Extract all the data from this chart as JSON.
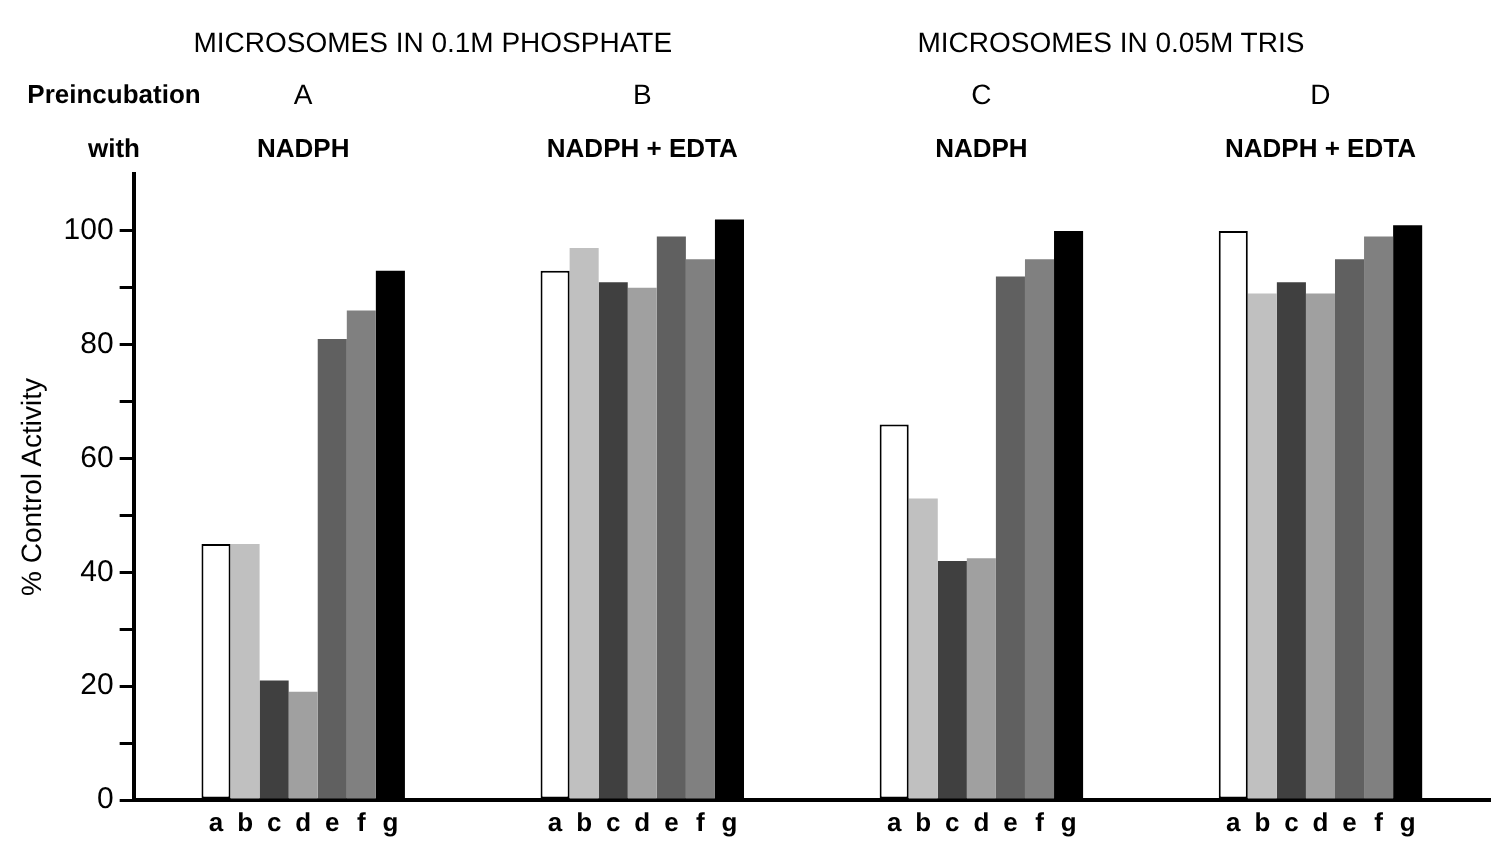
{
  "chart_data": {
    "type": "bar",
    "ylabel": "% Control Activity",
    "categories": [
      "A",
      "B",
      "C",
      "D"
    ],
    "series": [
      {
        "name": "a",
        "color": "#ffffff",
        "values": [
          45,
          93,
          66,
          100
        ]
      },
      {
        "name": "b",
        "color": "#c0c0c0",
        "values": [
          45,
          97,
          53,
          89
        ]
      },
      {
        "name": "c",
        "color": "#404040",
        "values": [
          21,
          91,
          42,
          91
        ]
      },
      {
        "name": "d",
        "color": "#a0a0a0",
        "values": [
          19,
          90,
          42.5,
          89
        ]
      },
      {
        "name": "e",
        "color": "#606060",
        "values": [
          81,
          99,
          92,
          95
        ]
      },
      {
        "name": "f",
        "color": "#808080",
        "values": [
          86,
          95,
          95,
          99
        ]
      },
      {
        "name": "g",
        "color": "#000000",
        "values": [
          93,
          102,
          100,
          101
        ]
      }
    ],
    "ylim": [
      0,
      110
    ],
    "yticks": [
      0,
      {
        "value": 10,
        "label": null
      },
      20,
      {
        "value": 30,
        "label": null
      },
      40,
      {
        "value": 50,
        "label": null
      },
      60,
      {
        "value": 70,
        "label": null
      },
      80,
      {
        "value": 90,
        "label": null
      },
      100
    ],
    "grid": false,
    "legend": false,
    "annotations": [
      "MICROSOMES IN 0.1M PHOSPHATE",
      "MICROSOMES IN 0.05M TRIS",
      "Preincubation",
      "with",
      "NADPH",
      "NADPH + EDTA",
      "NADPH",
      "NADPH + EDTA"
    ]
  }
}
